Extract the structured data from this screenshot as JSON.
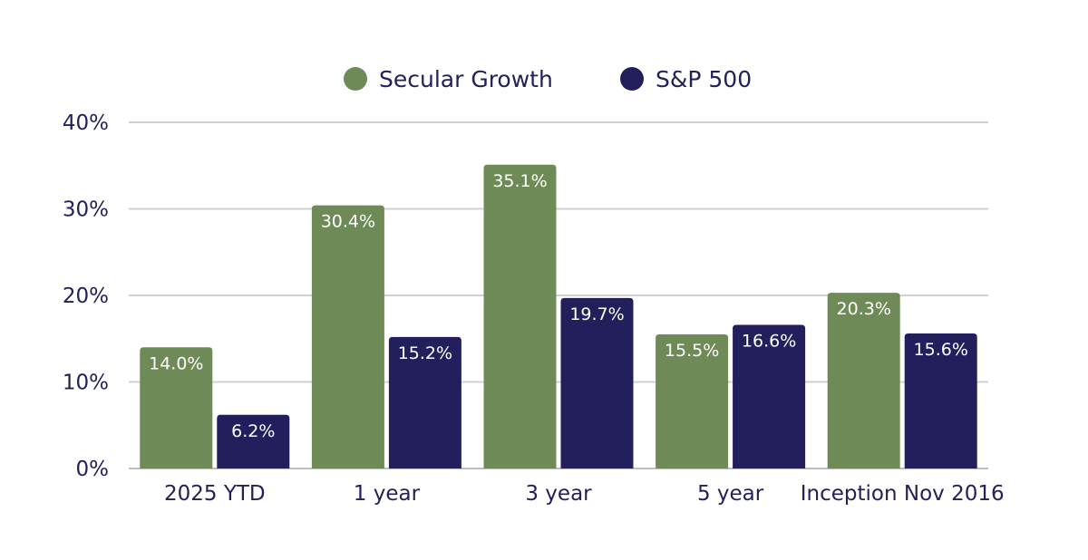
{
  "chart_data": {
    "type": "bar",
    "title": "",
    "xlabel": "",
    "ylabel": "",
    "categories": [
      "2025 YTD",
      "1 year",
      "3 year",
      "5 year",
      "Inception Nov 2016"
    ],
    "series": [
      {
        "name": "Secular Growth",
        "color": "#6e8b57",
        "values": [
          14.0,
          30.4,
          35.1,
          15.5,
          20.3
        ],
        "labels": [
          "14.0%",
          "30.4%",
          "35.1%",
          "15.5%",
          "20.3%"
        ]
      },
      {
        "name": "S&P 500",
        "color": "#231f5c",
        "values": [
          6.2,
          15.2,
          19.7,
          16.6,
          15.6
        ],
        "labels": [
          "6.2%",
          "15.2%",
          "19.7%",
          "16.6%",
          "15.6%"
        ]
      }
    ],
    "ylim": [
      0,
      40
    ],
    "yticks": [
      0,
      10,
      20,
      30,
      40
    ],
    "ytick_labels": [
      "0%",
      "10%",
      "20%",
      "30%",
      "40%"
    ],
    "grid": true,
    "legend_position": "top-center"
  }
}
